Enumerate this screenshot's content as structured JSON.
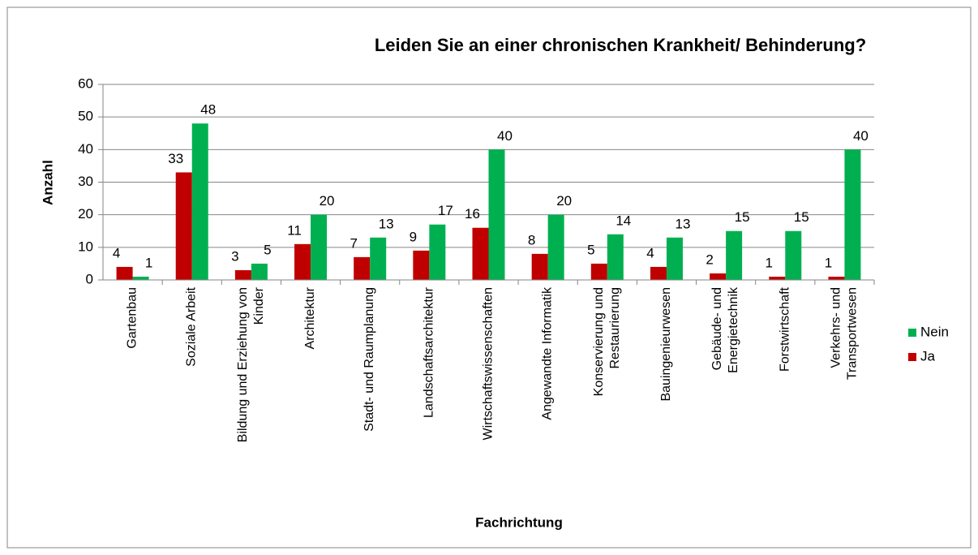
{
  "chart_data": {
    "type": "bar",
    "title": "Leiden Sie an einer chronischen Krankheit/ Behinderung?",
    "xlabel": "Fachrichtung",
    "ylabel": "Anzahl",
    "categories": [
      "Gartenbau",
      "Soziale Arbeit",
      "Bildung und Erziehung von Kinder",
      "Architektur",
      "Stadt- und Raumplanung",
      "Landschaftsarchitektur",
      "Wirtschaftswissenschaften",
      "Angewandte Informatik",
      "Konservierung und Restaurierung",
      "Bauingenieurwesen",
      "Gebäude- und Energietechnik",
      "Forstwirtschaft",
      "Verkehrs- und Transportwesen"
    ],
    "series": [
      {
        "name": "Ja",
        "color": "#c00000",
        "values": [
          4,
          33,
          3,
          11,
          7,
          9,
          16,
          8,
          5,
          4,
          2,
          1,
          1
        ]
      },
      {
        "name": "Nein",
        "color": "#00b050",
        "values": [
          1,
          48,
          5,
          20,
          13,
          17,
          40,
          20,
          14,
          13,
          15,
          15,
          40
        ]
      }
    ],
    "ylim": [
      0,
      60
    ],
    "yticks": [
      0,
      10,
      20,
      30,
      40,
      50,
      60
    ],
    "grid": true,
    "legend": "right"
  }
}
